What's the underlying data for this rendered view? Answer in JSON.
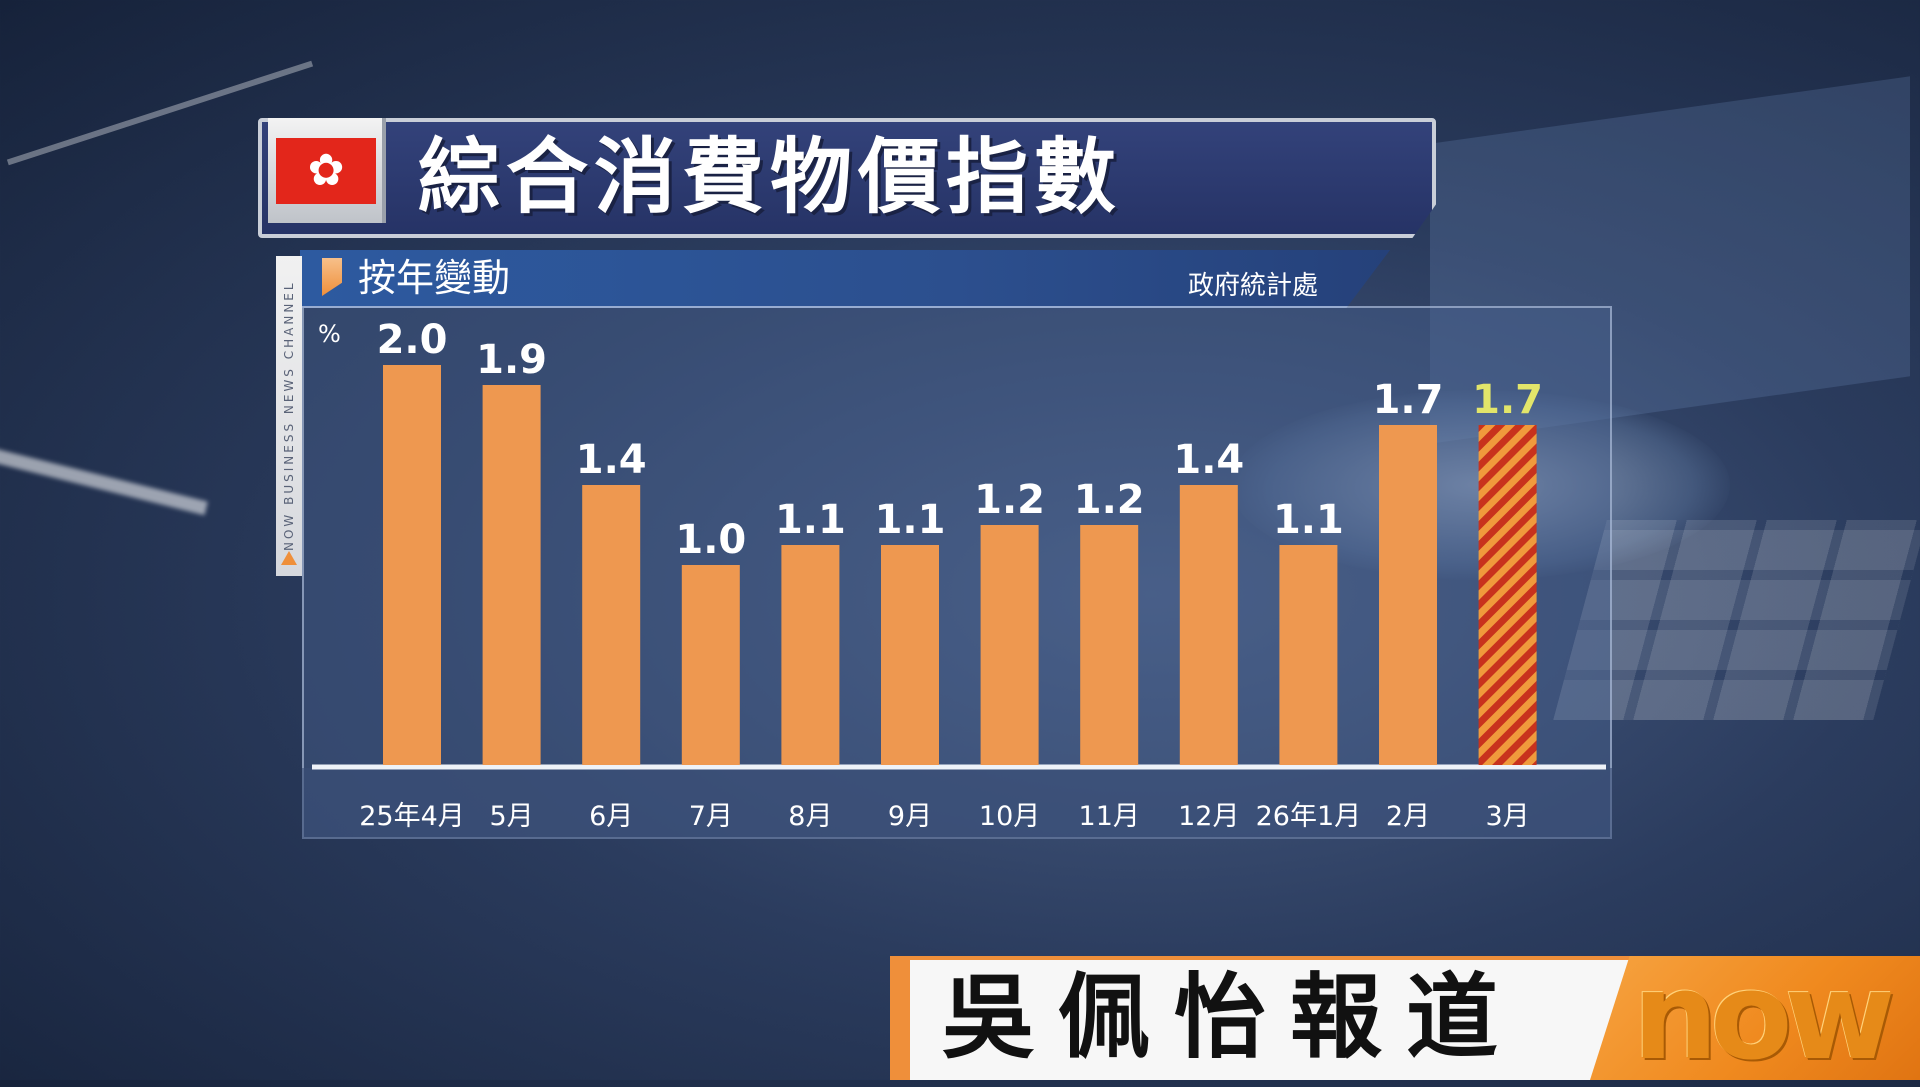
{
  "title": "綜合消費物價指數",
  "subtitle": "按年變動",
  "source": "政府統計處",
  "unit_label": "%",
  "channel_label": "NOW BUSINESS NEWS CHANNEL",
  "reporter": "吳佩怡報道",
  "logo": "now",
  "colors": {
    "bar": "#ee9850",
    "highlight_bar_stripe_a": "#c8321d",
    "highlight_bar_stripe_b": "#f09a3c",
    "highlight_label": "#e2e56a",
    "title_bg": "#2a3670",
    "accent": "#ef8f3a"
  },
  "chart_data": {
    "type": "bar",
    "title": "綜合消費物價指數",
    "subtitle": "按年變動",
    "ylabel": "%",
    "categories": [
      "25年4月",
      "5月",
      "6月",
      "7月",
      "8月",
      "9月",
      "10月",
      "11月",
      "12月",
      "26年1月",
      "2月",
      "3月"
    ],
    "values": [
      2.0,
      1.9,
      1.4,
      1.0,
      1.1,
      1.1,
      1.2,
      1.2,
      1.4,
      1.1,
      1.7,
      1.7
    ],
    "data_labels": [
      "2.0",
      "1.9",
      "1.4",
      "1.0",
      "1.1",
      "1.1",
      "1.2",
      "1.2",
      "1.4",
      "1.1",
      "1.7",
      "1.7"
    ],
    "highlight_index": 11,
    "ylim": [
      0,
      2.1
    ],
    "grid": false,
    "legend": "none"
  }
}
